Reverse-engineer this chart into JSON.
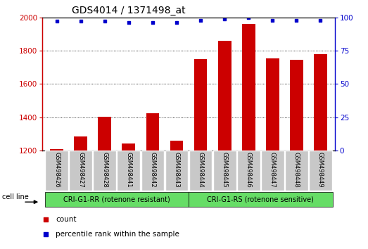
{
  "title": "GDS4014 / 1371498_at",
  "categories": [
    "GSM498426",
    "GSM498427",
    "GSM498428",
    "GSM498441",
    "GSM498442",
    "GSM498443",
    "GSM498444",
    "GSM498445",
    "GSM498446",
    "GSM498447",
    "GSM498448",
    "GSM498449"
  ],
  "counts": [
    1210,
    1285,
    1405,
    1245,
    1425,
    1260,
    1750,
    1860,
    1960,
    1755,
    1745,
    1780
  ],
  "percentile_ranks": [
    97,
    97,
    97,
    96,
    96,
    96,
    98,
    99,
    100,
    98,
    98,
    98
  ],
  "bar_color": "#cc0000",
  "dot_color": "#0000cc",
  "ylim_left": [
    1200,
    2000
  ],
  "ylim_right": [
    0,
    100
  ],
  "yticks_left": [
    1200,
    1400,
    1600,
    1800,
    2000
  ],
  "yticks_right": [
    0,
    25,
    50,
    75,
    100
  ],
  "group1_label": "CRI-G1-RR (rotenone resistant)",
  "group2_label": "CRI-G1-RS (rotenone sensitive)",
  "cell_line_label": "cell line",
  "legend1_label": "count",
  "legend2_label": "percentile rank within the sample",
  "group1_color": "#66dd66",
  "group2_color": "#66dd66",
  "xtick_bg_color": "#c8c8c8",
  "plot_bg_color": "#ffffff",
  "tick_color_left": "#cc0000",
  "tick_color_right": "#0000cc",
  "grid_dotted_color": "#000000",
  "title_fontsize": 10,
  "bar_width": 0.55
}
